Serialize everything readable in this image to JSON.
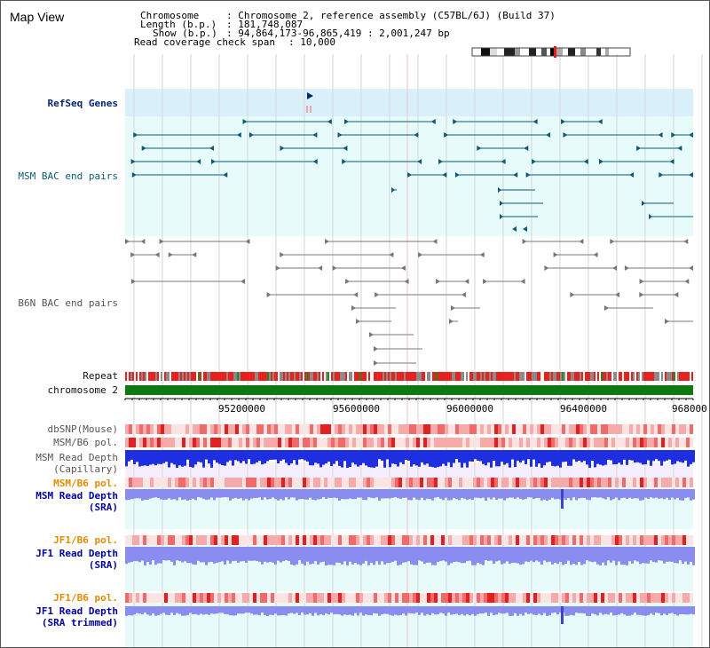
{
  "window": {
    "title": "Map View"
  },
  "info": {
    "chromosome_key": "Chromosome",
    "chromosome_value": ": Chromosome 2, reference assembly (C57BL/6J) (Build 37)",
    "length_key": "Length (b.p.)",
    "length_value": ": 181,748,087",
    "show_key": "Show (b.p.)",
    "show_value": ": 94,864,173-96,865,419 : 2,001,247 bp",
    "span_key": "Read coverage check span",
    "span_value": ": 10,000"
  },
  "tracks": {
    "refseq": "RefSeq Genes",
    "msm_bac": "MSM BAC end pairs",
    "b6n_bac": "B6N BAC end pairs",
    "repeat": "Repeat",
    "chromosome": "chromosome 2",
    "dbsnp": "dbSNP(Mouse)",
    "msm_b6_pol": "MSM/B6 pol.",
    "msm_read_depth_cap_1": "MSM Read Depth",
    "msm_read_depth_cap_2": "(Capillary)",
    "msm_b6_pol_2": "MSM/B6 pol.",
    "msm_read_depth_sra_1": "MSM Read Depth",
    "msm_read_depth_sra_2": "(SRA)",
    "jf1_b6_pol": "JF1/B6 pol.",
    "jf1_read_depth_sra_1": "JF1 Read Depth",
    "jf1_read_depth_sra_2": "(SRA)",
    "jf1_b6_pol_2": "JF1/B6 pol.",
    "jf1_read_depth_trim_1": "JF1 Read Depth",
    "jf1_read_depth_trim_2": "(SRA trimmed)"
  },
  "axis": {
    "ticks": [
      "95200000",
      "95600000",
      "96000000",
      "96400000",
      "968000"
    ]
  },
  "colors": {
    "refseq_bg": "#d9f0fb",
    "bac_bg": "#e8fbfb",
    "gene": "#0b5a79",
    "repeat_red": "#e8201e",
    "chrom_green": "#0c7a10",
    "snp": "#f08080",
    "depth_dark": "#1d2fe0",
    "depth_light": "#8a8cf0",
    "track_bg": "#e7fbfb"
  }
}
